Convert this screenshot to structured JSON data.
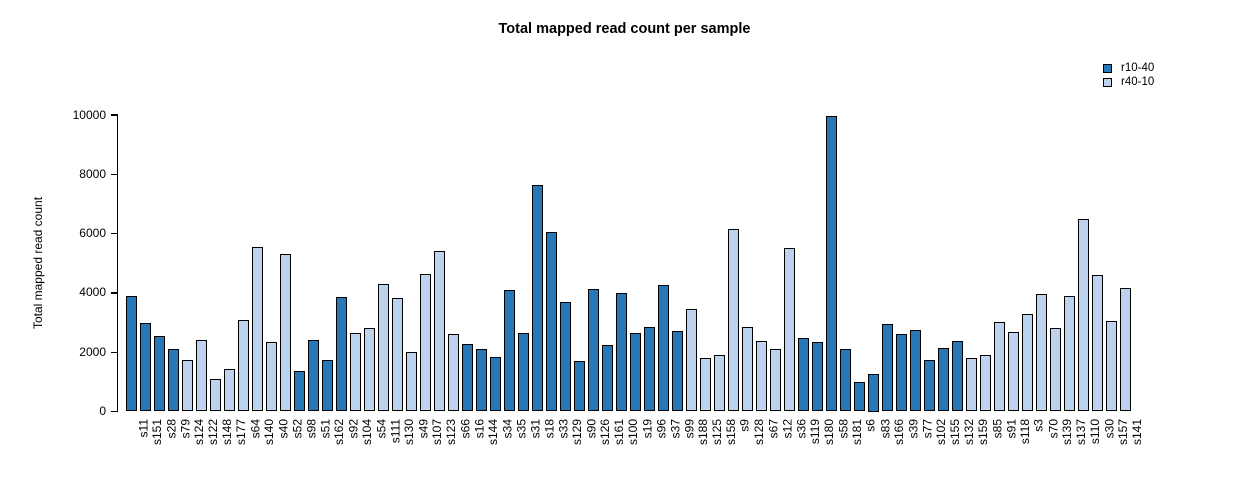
{
  "page": {
    "background": "#ffffff"
  },
  "chart_data": {
    "type": "bar",
    "title": "Total mapped read count per sample",
    "ylabel": "Total mapped read count",
    "xlabel": "",
    "ylim": [
      0,
      10000
    ],
    "yticks": [
      0,
      2000,
      4000,
      6000,
      8000,
      10000
    ],
    "grid": false,
    "legend_position": "top-right",
    "legend": [
      {
        "name": "r10-40",
        "color": "#2878b8"
      },
      {
        "name": "r40-10",
        "color": "#bdd2ec"
      }
    ],
    "categories": [
      "s11",
      "s151",
      "s28",
      "s79",
      "s124",
      "s122",
      "s148",
      "s177",
      "s64",
      "s140",
      "s40",
      "s52",
      "s98",
      "s51",
      "s162",
      "s92",
      "s104",
      "s54",
      "s111",
      "s130",
      "s49",
      "s107",
      "s123",
      "s66",
      "s16",
      "s144",
      "s34",
      "s35",
      "s31",
      "s18",
      "s33",
      "s129",
      "s90",
      "s126",
      "s161",
      "s100",
      "s19",
      "s96",
      "s37",
      "s99",
      "s188",
      "s125",
      "s158",
      "s9",
      "s128",
      "s67",
      "s12",
      "s36",
      "s119",
      "s180",
      "s58",
      "s181",
      "s6",
      "s83",
      "s166",
      "s39",
      "s77",
      "s102",
      "s155",
      "s132",
      "s159",
      "s85",
      "s91",
      "s118",
      "s3",
      "s70",
      "s139",
      "s137",
      "s110",
      "s30",
      "s157",
      "s141"
    ],
    "values": [
      3880,
      2980,
      2560,
      2100,
      1730,
      2400,
      1100,
      1420,
      3100,
      5560,
      2330,
      5300,
      1380,
      2420,
      1750,
      3870,
      2650,
      2800,
      4300,
      3840,
      2000,
      4650,
      5400,
      2630,
      2270,
      2100,
      1830,
      4100,
      2660,
      7650,
      6050,
      3700,
      1700,
      4120,
      2250,
      3980,
      2650,
      2850,
      4280,
      2730,
      3450,
      1820,
      1900,
      6150,
      2850,
      2370,
      2100,
      5500,
      2470,
      2330,
      9950,
      2120,
      1000,
      1250,
      2960,
      2600,
      2760,
      1750,
      2150,
      2380,
      1800,
      1900,
      3020,
      2690,
      3300,
      3950,
      2800,
      3900,
      6500,
      4600,
      3050,
      4150
    ],
    "bar_groups": [
      "r10-40",
      "r10-40",
      "r10-40",
      "r10-40",
      "r40-10",
      "r40-10",
      "r40-10",
      "r40-10",
      "r40-10",
      "r40-10",
      "r40-10",
      "r40-10",
      "r10-40",
      "r10-40",
      "r10-40",
      "r10-40",
      "r40-10",
      "r40-10",
      "r40-10",
      "r40-10",
      "r40-10",
      "r40-10",
      "r40-10",
      "r40-10",
      "r10-40",
      "r10-40",
      "r10-40",
      "r10-40",
      "r10-40",
      "r10-40",
      "r10-40",
      "r10-40",
      "r10-40",
      "r10-40",
      "r10-40",
      "r10-40",
      "r10-40",
      "r10-40",
      "r10-40",
      "r10-40",
      "r40-10",
      "r40-10",
      "r40-10",
      "r40-10",
      "r40-10",
      "r40-10",
      "r40-10",
      "r40-10",
      "r10-40",
      "r10-40",
      "r10-40",
      "r10-40",
      "r10-40",
      "r10-40",
      "r10-40",
      "r10-40",
      "r10-40",
      "r10-40",
      "r10-40",
      "r10-40",
      "r40-10",
      "r40-10",
      "r40-10",
      "r40-10",
      "r40-10",
      "r40-10",
      "r40-10",
      "r40-10",
      "r40-10",
      "r40-10",
      "r40-10",
      "r40-10"
    ]
  }
}
